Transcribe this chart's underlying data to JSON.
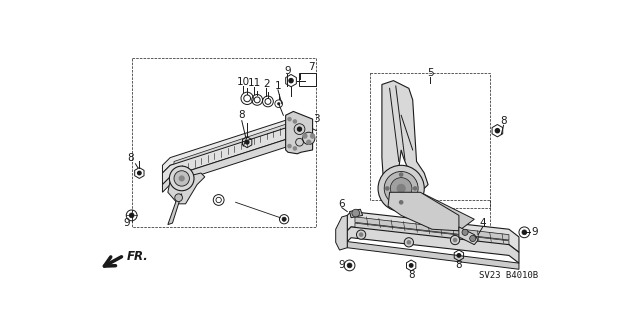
{
  "bg_color": "#ffffff",
  "line_color": "#1a1a1a",
  "fig_width": 6.4,
  "fig_height": 3.19,
  "dpi": 100,
  "catalog_number": "SV23 B4010B",
  "fr_text": "FR."
}
